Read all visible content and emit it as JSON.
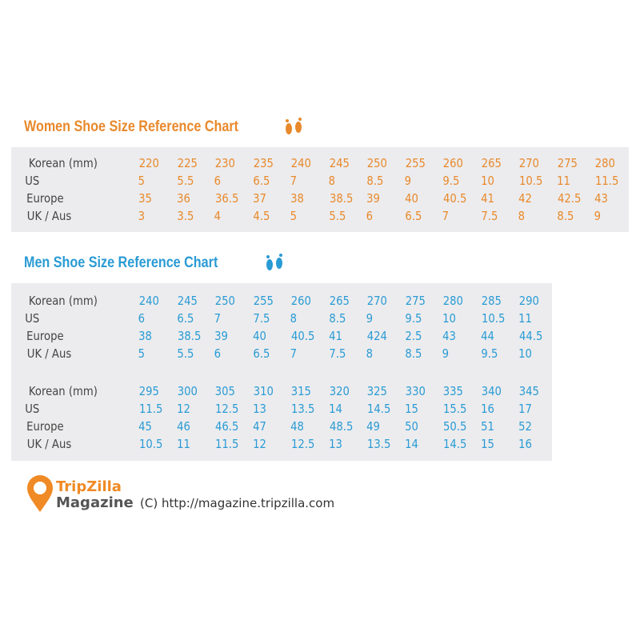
{
  "women": {
    "title": "Women Shoe Size Reference Chart",
    "rows": [
      {
        "label": "Korean (mm)",
        "values": [
          "220",
          "225",
          "230",
          "235",
          "240",
          "245",
          "250",
          "255",
          "260",
          "265",
          "270",
          "275",
          "280"
        ]
      },
      {
        "label": "US",
        "values": [
          "5",
          "5.5",
          "6",
          "6.5",
          "7",
          "8",
          "8.5",
          "9",
          "9.5",
          "10",
          "10.5",
          "11",
          "11.5"
        ]
      },
      {
        "label": "Europe",
        "values": [
          "35",
          "36",
          "36.5",
          "37",
          "38",
          "38.5",
          "39",
          "40",
          "40.5",
          "41",
          "42",
          "42.5",
          "43"
        ]
      },
      {
        "label": "UK / Aus",
        "values": [
          "3",
          "3.5",
          "4",
          "4.5",
          "5",
          "5.5",
          "6",
          "6.5",
          "7",
          "7.5",
          "8",
          "8.5",
          "9"
        ]
      }
    ]
  },
  "men": {
    "title": "Men Shoe Size Reference Chart",
    "blocks": [
      {
        "rows": [
          {
            "label": "Korean (mm)",
            "values": [
              "240",
              "245",
              "250",
              "255",
              "260",
              "265",
              "270",
              "275",
              "280",
              "285",
              "290"
            ]
          },
          {
            "label": "US",
            "values": [
              "6",
              "6.5",
              "7",
              "7.5",
              "8",
              "8.5",
              "9",
              "9.5",
              "10",
              "10.5",
              "11"
            ]
          },
          {
            "label": "Europe",
            "values": [
              "38",
              "38.5",
              "39",
              "40",
              "40.5",
              "41",
              "424",
              "2.5",
              "43",
              "44",
              "44.5"
            ]
          },
          {
            "label": "UK / Aus",
            "values": [
              "5",
              "5.5",
              "6",
              "6.5",
              "7",
              "7.5",
              "8",
              "8.5",
              "9",
              "9.5",
              "10"
            ]
          }
        ]
      },
      {
        "rows": [
          {
            "label": "Korean (mm)",
            "values": [
              "295",
              "300",
              "305",
              "310",
              "315",
              "320",
              "325",
              "330",
              "335",
              "340",
              "345"
            ]
          },
          {
            "label": "US",
            "values": [
              "11.5",
              "12",
              "12.5",
              "13",
              "13.5",
              "14",
              "14.5",
              "15",
              "15.5",
              "16",
              "17"
            ]
          },
          {
            "label": "Europe",
            "values": [
              "45",
              "46",
              "46.5",
              "47",
              "48",
              "48.5",
              "49",
              "50",
              "50.5",
              "51",
              "52"
            ]
          },
          {
            "label": "UK / Aus",
            "values": [
              "10.5",
              "11",
              "11.5",
              "12",
              "12.5",
              "13",
              "13.5",
              "14",
              "14.5",
              "15",
              "16"
            ]
          }
        ]
      }
    ]
  },
  "footer": {
    "brand": "TripZilla",
    "sub": "Magazine",
    "copyright": "(C) http://magazine.tripzilla.com"
  }
}
